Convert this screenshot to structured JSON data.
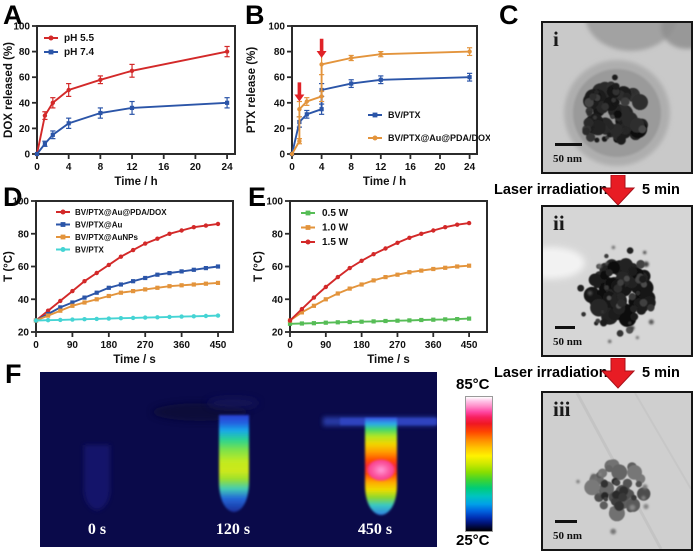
{
  "figure": {
    "panel_labels": {
      "a": "A",
      "b": "B",
      "c": "C",
      "d": "D",
      "e": "E",
      "f": "F"
    }
  },
  "chart_data": [
    {
      "id": "A",
      "type": "line",
      "title": "",
      "xlabel": "Time / h",
      "ylabel": "DOX released (%)",
      "xlim": [
        0,
        25
      ],
      "ylim": [
        0,
        100
      ],
      "xticks": [
        0,
        4,
        8,
        12,
        16,
        20,
        24
      ],
      "yticks": [
        0,
        20,
        40,
        60,
        80,
        100
      ],
      "grid": false,
      "legend_position": "top-left",
      "series": [
        {
          "name": "pH 5.5",
          "color": "#d32929",
          "marker": "circle",
          "x": [
            0,
            1,
            2,
            4,
            8,
            12,
            24
          ],
          "y": [
            0,
            30,
            40,
            50,
            58,
            65,
            80
          ],
          "err": [
            0,
            3,
            4,
            5,
            3,
            5,
            4
          ]
        },
        {
          "name": "pH 7.4",
          "color": "#2b55a8",
          "marker": "square",
          "x": [
            0,
            1,
            2,
            4,
            8,
            12,
            24
          ],
          "y": [
            0,
            8,
            15,
            24,
            32,
            36,
            40
          ],
          "err": [
            0,
            2,
            3,
            4,
            4,
            5,
            4
          ]
        }
      ]
    },
    {
      "id": "B",
      "type": "line",
      "title": "",
      "xlabel": "Time / h",
      "ylabel": "PTX release (%)",
      "xlim": [
        0,
        25
      ],
      "ylim": [
        0,
        100
      ],
      "xticks": [
        0,
        4,
        8,
        12,
        16,
        20,
        24
      ],
      "yticks": [
        0,
        20,
        40,
        60,
        80,
        100
      ],
      "grid": false,
      "legend_position": "bottom-right",
      "series": [
        {
          "name": "BV/PTX",
          "color": "#2b55a8",
          "marker": "square",
          "x": [
            0,
            1,
            2,
            4,
            4,
            8,
            12,
            24
          ],
          "y": [
            0,
            25,
            31,
            35,
            50,
            55,
            58,
            60
          ],
          "err": [
            0,
            4,
            3,
            4,
            5,
            3,
            3,
            3
          ]
        },
        {
          "name": "BV/PTX@Au@PDA/DOX",
          "color": "#e3943c",
          "marker": "circle",
          "x": [
            0,
            1,
            1,
            2,
            4,
            4,
            8,
            12,
            24
          ],
          "y": [
            0,
            10,
            35,
            41,
            45,
            70,
            75,
            78,
            80
          ],
          "err": [
            0,
            2,
            6,
            3,
            4,
            8,
            2,
            2,
            3
          ]
        }
      ],
      "annotations": [
        {
          "type": "laser-arrow",
          "x": 1,
          "y_tip": 41,
          "y_tail": 56,
          "color": "#e02227"
        },
        {
          "type": "laser-arrow",
          "x": 4,
          "y_tip": 75,
          "y_tail": 90,
          "color": "#e02227"
        }
      ]
    },
    {
      "id": "D",
      "type": "line",
      "title": "",
      "xlabel": "Time / s",
      "ylabel": "T (°C)",
      "xlim": [
        0,
        487
      ],
      "ylim": [
        20,
        100
      ],
      "xticks": [
        0,
        90,
        180,
        270,
        360,
        450
      ],
      "yticks": [
        20,
        40,
        60,
        80,
        100
      ],
      "grid": false,
      "legend_position": "top-left",
      "x": [
        0,
        30,
        60,
        90,
        120,
        150,
        180,
        210,
        240,
        270,
        300,
        330,
        360,
        390,
        420,
        450
      ],
      "series": [
        {
          "name": "BV/PTX@Au@PDA/DOX",
          "color": "#d32929",
          "marker": "circle",
          "y": [
            27,
            33,
            39,
            45,
            51,
            56,
            61,
            66,
            70,
            74,
            77,
            80,
            82,
            84,
            85,
            86
          ]
        },
        {
          "name": "BV/PTX@Au",
          "color": "#2b55a8",
          "marker": "square",
          "y": [
            27,
            31,
            35,
            38,
            41,
            44,
            47,
            49,
            51,
            53,
            55,
            56,
            57,
            58,
            59,
            60
          ]
        },
        {
          "name": "BV/PTX@AuNPs",
          "color": "#e3943c",
          "marker": "square",
          "y": [
            27,
            30,
            33,
            36,
            38,
            40,
            42,
            44,
            45,
            46,
            47,
            48,
            48.5,
            49,
            49.5,
            50
          ]
        },
        {
          "name": "BV/PTX",
          "color": "#45d4d4",
          "marker": "circle",
          "y": [
            27,
            27.2,
            27.4,
            27.6,
            27.8,
            28,
            28.2,
            28.4,
            28.6,
            28.8,
            29,
            29.2,
            29.4,
            29.6,
            29.8,
            30
          ]
        }
      ]
    },
    {
      "id": "E",
      "type": "line",
      "title": "",
      "xlabel": "Time / s",
      "ylabel": "T (°C)",
      "xlim": [
        0,
        495
      ],
      "ylim": [
        20,
        100
      ],
      "xticks": [
        0,
        90,
        180,
        270,
        360,
        450
      ],
      "yticks": [
        20,
        40,
        60,
        80,
        100
      ],
      "grid": false,
      "legend_position": "top-left",
      "x": [
        0,
        30,
        60,
        90,
        120,
        150,
        180,
        210,
        240,
        270,
        300,
        330,
        360,
        390,
        420,
        450
      ],
      "series": [
        {
          "name": "0.5 W",
          "color": "#56bd56",
          "marker": "square",
          "y": [
            25,
            25.2,
            25.4,
            25.7,
            25.9,
            26.1,
            26.3,
            26.5,
            26.7,
            26.9,
            27.1,
            27.3,
            27.5,
            27.7,
            27.9,
            28.2
          ]
        },
        {
          "name": "1.0 W",
          "color": "#e3943c",
          "marker": "square",
          "y": [
            27,
            32,
            36,
            40,
            43.5,
            46.5,
            49,
            51.5,
            53.5,
            55,
            56.5,
            57.5,
            58.5,
            59.2,
            60,
            60.5
          ]
        },
        {
          "name": "1.5 W",
          "color": "#d32929",
          "marker": "circle",
          "y": [
            27,
            34,
            41,
            47.5,
            53.5,
            59,
            63.5,
            67.5,
            71,
            74.5,
            77.5,
            80,
            82,
            84,
            85.5,
            86.5
          ]
        }
      ]
    }
  ],
  "tem_panel": {
    "images": [
      {
        "label": "i",
        "scalebar_label": "50 nm"
      },
      {
        "label": "ii",
        "scalebar_label": "50 nm"
      },
      {
        "label": "iii",
        "scalebar_label": "50 nm"
      }
    ],
    "steps": [
      {
        "text": "Laser irradiation",
        "duration": "5 min"
      },
      {
        "text": "Laser irradiation",
        "duration": "5 min"
      }
    ]
  },
  "thermal_panel": {
    "timepoint_labels": [
      "0 s",
      "120 s",
      "450 s"
    ],
    "colorbar_max": "85°C",
    "colorbar_min": "25°C",
    "background_color": "#0a0a4a"
  }
}
